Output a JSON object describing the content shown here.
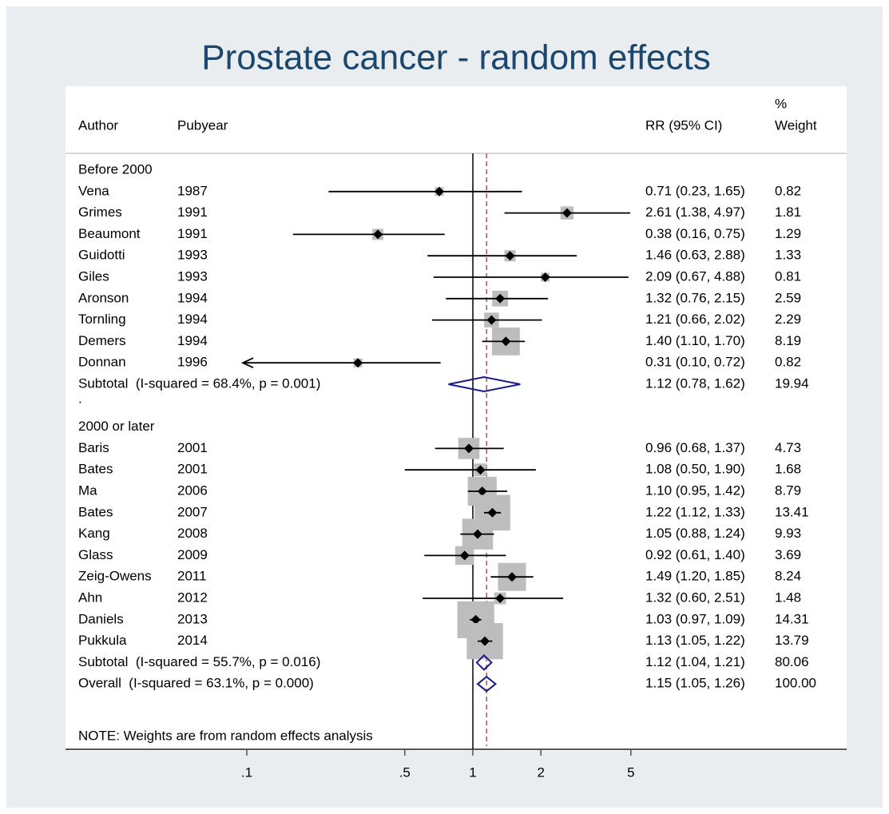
{
  "chart_data": {
    "type": "forest",
    "title": "Prostate cancer - random effects",
    "header": {
      "author": "Author",
      "pubyear": "Pubyear",
      "rr": "RR (95% CI)",
      "weight_pct": "%",
      "weight": "Weight"
    },
    "groups": [
      {
        "label": "Before 2000",
        "studies": [
          {
            "author": "Vena",
            "year": "1987",
            "rr": 0.71,
            "lo": 0.23,
            "hi": 1.65,
            "ci_label": "0.71 (0.23, 1.65)",
            "weight": 0.82
          },
          {
            "author": "Grimes",
            "year": "1991",
            "rr": 2.61,
            "lo": 1.38,
            "hi": 4.97,
            "ci_label": "2.61 (1.38, 4.97)",
            "weight": 1.81
          },
          {
            "author": "Beaumont",
            "year": "1991",
            "rr": 0.38,
            "lo": 0.16,
            "hi": 0.75,
            "ci_label": "0.38 (0.16, 0.75)",
            "weight": 1.29
          },
          {
            "author": "Guidotti",
            "year": "1993",
            "rr": 1.46,
            "lo": 0.63,
            "hi": 2.88,
            "ci_label": "1.46 (0.63, 2.88)",
            "weight": 1.33
          },
          {
            "author": "Giles",
            "year": "1993",
            "rr": 2.09,
            "lo": 0.67,
            "hi": 4.88,
            "ci_label": "2.09 (0.67, 4.88)",
            "weight": 0.81
          },
          {
            "author": "Aronson",
            "year": "1994",
            "rr": 1.32,
            "lo": 0.76,
            "hi": 2.15,
            "ci_label": "1.32 (0.76, 2.15)",
            "weight": 2.59
          },
          {
            "author": "Tornling",
            "year": "1994",
            "rr": 1.21,
            "lo": 0.66,
            "hi": 2.02,
            "ci_label": "1.21 (0.66, 2.02)",
            "weight": 2.29
          },
          {
            "author": "Demers",
            "year": "1994",
            "rr": 1.4,
            "lo": 1.1,
            "hi": 1.7,
            "ci_label": "1.40 (1.10, 1.70)",
            "weight": 8.19
          },
          {
            "author": "Donnan",
            "year": "1996",
            "rr": 0.31,
            "lo": 0.1,
            "hi": 0.72,
            "ci_label": "0.31 (0.10, 0.72)",
            "weight": 0.82
          }
        ],
        "subtotal": {
          "label": "Subtotal  (I-squared = 68.4%, p = 0.001)",
          "rr": 1.12,
          "lo": 0.78,
          "hi": 1.62,
          "ci_label": "1.12 (0.78, 1.62)",
          "weight": 19.94
        },
        "spacer": "."
      },
      {
        "label": "2000 or later",
        "studies": [
          {
            "author": "Baris",
            "year": "2001",
            "rr": 0.96,
            "lo": 0.68,
            "hi": 1.37,
            "ci_label": "0.96 (0.68, 1.37)",
            "weight": 4.73
          },
          {
            "author": "Bates",
            "year": "2001",
            "rr": 1.08,
            "lo": 0.5,
            "hi": 1.9,
            "ci_label": "1.08 (0.50, 1.90)",
            "weight": 1.68
          },
          {
            "author": "Ma",
            "year": "2006",
            "rr": 1.1,
            "lo": 0.95,
            "hi": 1.42,
            "ci_label": "1.10 (0.95, 1.42)",
            "weight": 8.79
          },
          {
            "author": "Bates",
            "year": "2007",
            "rr": 1.22,
            "lo": 1.12,
            "hi": 1.33,
            "ci_label": "1.22 (1.12, 1.33)",
            "weight": 13.41
          },
          {
            "author": "Kang",
            "year": "2008",
            "rr": 1.05,
            "lo": 0.88,
            "hi": 1.24,
            "ci_label": "1.05 (0.88, 1.24)",
            "weight": 9.93
          },
          {
            "author": "Glass",
            "year": "2009",
            "rr": 0.92,
            "lo": 0.61,
            "hi": 1.4,
            "ci_label": "0.92 (0.61, 1.40)",
            "weight": 3.69
          },
          {
            "author": "Zeig-Owens",
            "year": "2011",
            "rr": 1.49,
            "lo": 1.2,
            "hi": 1.85,
            "ci_label": "1.49 (1.20, 1.85)",
            "weight": 8.24
          },
          {
            "author": "Ahn",
            "year": "2012",
            "rr": 1.32,
            "lo": 0.6,
            "hi": 2.51,
            "ci_label": "1.32 (0.60, 2.51)",
            "weight": 1.48
          },
          {
            "author": "Daniels",
            "year": "2013",
            "rr": 1.03,
            "lo": 0.97,
            "hi": 1.09,
            "ci_label": "1.03 (0.97, 1.09)",
            "weight": 14.31
          },
          {
            "author": "Pukkula",
            "year": "2014",
            "rr": 1.13,
            "lo": 1.05,
            "hi": 1.22,
            "ci_label": "1.13 (1.05, 1.22)",
            "weight": 13.79
          }
        ],
        "subtotal": {
          "label": "Subtotal  (I-squared = 55.7%, p = 0.016)",
          "rr": 1.12,
          "lo": 1.04,
          "hi": 1.21,
          "ci_label": "1.12 (1.04, 1.21)",
          "weight": 80.06
        },
        "spacer": "."
      }
    ],
    "overall": {
      "label": "Overall  (I-squared = 63.1%, p = 0.000)",
      "rr": 1.15,
      "lo": 1.05,
      "hi": 1.26,
      "ci_label": "1.15 (1.05, 1.26)",
      "weight": 100,
      "weight_label": "100.00"
    },
    "note": "NOTE: Weights are from random effects analysis",
    "log_scale": true,
    "null_value": 1,
    "xlim": [
      0.1,
      5
    ],
    "xticks": [
      {
        "value": 0.1,
        "label": ".1"
      },
      {
        "value": 0.5,
        "label": ".5"
      },
      1,
      2,
      5
    ]
  }
}
